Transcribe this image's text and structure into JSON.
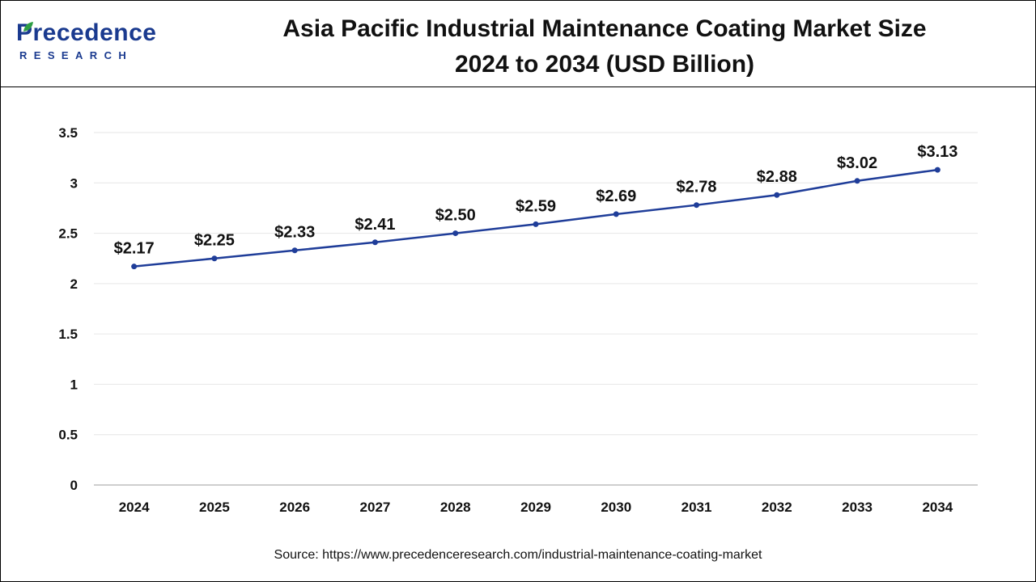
{
  "brand": {
    "name": "Precedence",
    "sub": "RESEARCH",
    "color": "#1a3a8f",
    "accent": "#2e9e44"
  },
  "header": {
    "title_line1": "Asia Pacific Industrial Maintenance Coating Market Size",
    "title_line2": "2024 to 2034 (USD Billion)"
  },
  "footer": {
    "source": "Source: https://www.precedenceresearch.com/industrial-maintenance-coating-market"
  },
  "chart_data": {
    "type": "line",
    "categories": [
      "2024",
      "2025",
      "2026",
      "2027",
      "2028",
      "2029",
      "2030",
      "2031",
      "2032",
      "2033",
      "2034"
    ],
    "series": [
      {
        "values": [
          2.17,
          2.25,
          2.33,
          2.41,
          2.5,
          2.59,
          2.69,
          2.78,
          2.88,
          3.02,
          3.13
        ],
        "labels": [
          "$2.17",
          "$2.25",
          "$2.33",
          "$2.41",
          "$2.50",
          "$2.59",
          "$2.69",
          "$2.78",
          "$2.88",
          "$3.02",
          "$3.13"
        ],
        "color": "#1f3d99"
      }
    ],
    "yticks": [
      "0",
      "0.5",
      "1",
      "1.5",
      "2",
      "2.5",
      "3",
      "3.5"
    ],
    "ylim": [
      0,
      3.5
    ],
    "grid": true,
    "legend": "none"
  }
}
